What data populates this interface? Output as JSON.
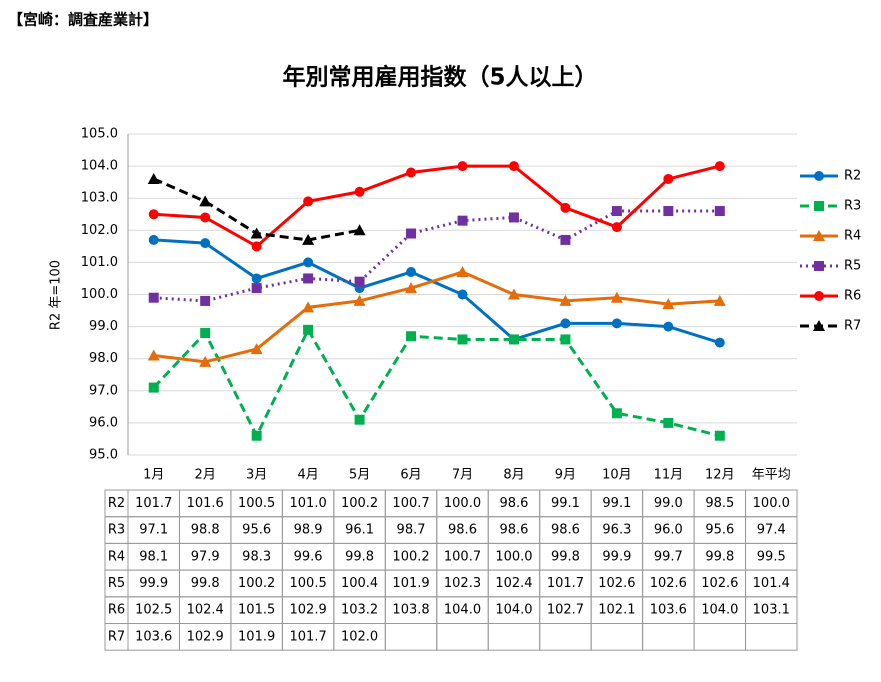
{
  "chart_data": {
    "type": "line",
    "corner_label": "【宮崎：調査産業計】",
    "title": "年別常用雇用指数（5人以上）",
    "ylabel": "R2 年=100",
    "categories": [
      "1月",
      "2月",
      "3月",
      "4月",
      "5月",
      "6月",
      "7月",
      "8月",
      "9月",
      "10月",
      "11月",
      "12月"
    ],
    "average_label": "年平均",
    "ylim": [
      95,
      105
    ],
    "yticks": [
      {
        "value": 95,
        "label": "95.0"
      },
      {
        "value": 96,
        "label": "96.0"
      },
      {
        "value": 97,
        "label": "97.0"
      },
      {
        "value": 98,
        "label": "98.0"
      },
      {
        "value": 99,
        "label": "99.0"
      },
      {
        "value": 100,
        "label": "100.0"
      },
      {
        "value": 101,
        "label": "101.0"
      },
      {
        "value": 102,
        "label": "102.0"
      },
      {
        "value": 103,
        "label": "103.0"
      },
      {
        "value": 104,
        "label": "104.0"
      },
      {
        "value": 105,
        "label": "105.0"
      }
    ],
    "grid": true,
    "legend": "right",
    "series": [
      {
        "name": "R2",
        "color": "#0070c0",
        "marker": "circle",
        "dash": "solid",
        "values": [
          101.7,
          101.6,
          100.5,
          101.0,
          100.2,
          100.7,
          100.0,
          98.6,
          99.1,
          99.1,
          99.0,
          98.5
        ],
        "value_labels": [
          "101.7",
          "101.6",
          "100.5",
          "101.0",
          "100.2",
          "100.7",
          "100.0",
          "98.6",
          "99.1",
          "99.1",
          "99.0",
          "98.5"
        ],
        "average": 100.0,
        "average_label": "100.0"
      },
      {
        "name": "R3",
        "color": "#00b050",
        "marker": "square",
        "dash": "dashed",
        "values": [
          97.1,
          98.8,
          95.6,
          98.9,
          96.1,
          98.7,
          98.6,
          98.6,
          98.6,
          96.3,
          96.0,
          95.6
        ],
        "value_labels": [
          "97.1",
          "98.8",
          "95.6",
          "98.9",
          "96.1",
          "98.7",
          "98.6",
          "98.6",
          "98.6",
          "96.3",
          "96.0",
          "95.6"
        ],
        "average": 97.4,
        "average_label": "97.4"
      },
      {
        "name": "R4",
        "color": "#e46c0a",
        "marker": "triangle",
        "dash": "solid",
        "values": [
          98.1,
          97.9,
          98.3,
          99.6,
          99.8,
          100.2,
          100.7,
          100.0,
          99.8,
          99.9,
          99.7,
          99.8
        ],
        "value_labels": [
          "98.1",
          "97.9",
          "98.3",
          "99.6",
          "99.8",
          "100.2",
          "100.7",
          "100.0",
          "99.8",
          "99.9",
          "99.7",
          "99.8"
        ],
        "average": 99.5,
        "average_label": "99.5"
      },
      {
        "name": "R5",
        "color": "#7030a0",
        "marker": "square",
        "dash": "dotted",
        "values": [
          99.9,
          99.8,
          100.2,
          100.5,
          100.4,
          101.9,
          102.3,
          102.4,
          101.7,
          102.6,
          102.6,
          102.6
        ],
        "value_labels": [
          "99.9",
          "99.8",
          "100.2",
          "100.5",
          "100.4",
          "101.9",
          "102.3",
          "102.4",
          "101.7",
          "102.6",
          "102.6",
          "102.6"
        ],
        "average": 101.4,
        "average_label": "101.4"
      },
      {
        "name": "R6",
        "color": "#ff0000",
        "marker": "circle",
        "dash": "solid",
        "values": [
          102.5,
          102.4,
          101.5,
          102.9,
          103.2,
          103.8,
          104.0,
          104.0,
          102.7,
          102.1,
          103.6,
          104.0
        ],
        "value_labels": [
          "102.5",
          "102.4",
          "101.5",
          "102.9",
          "103.2",
          "103.8",
          "104.0",
          "104.0",
          "102.7",
          "102.1",
          "103.6",
          "104.0"
        ],
        "average": 103.1,
        "average_label": "103.1"
      },
      {
        "name": "R7",
        "color": "#000000",
        "marker": "triangle",
        "dash": "dashed",
        "values": [
          103.6,
          102.9,
          101.9,
          101.7,
          102.0,
          null,
          null,
          null,
          null,
          null,
          null,
          null
        ],
        "value_labels": [
          "103.6",
          "102.9",
          "101.9",
          "101.7",
          "102.0",
          null,
          null,
          null,
          null,
          null,
          null,
          null
        ],
        "average": null,
        "average_label": null
      }
    ]
  }
}
